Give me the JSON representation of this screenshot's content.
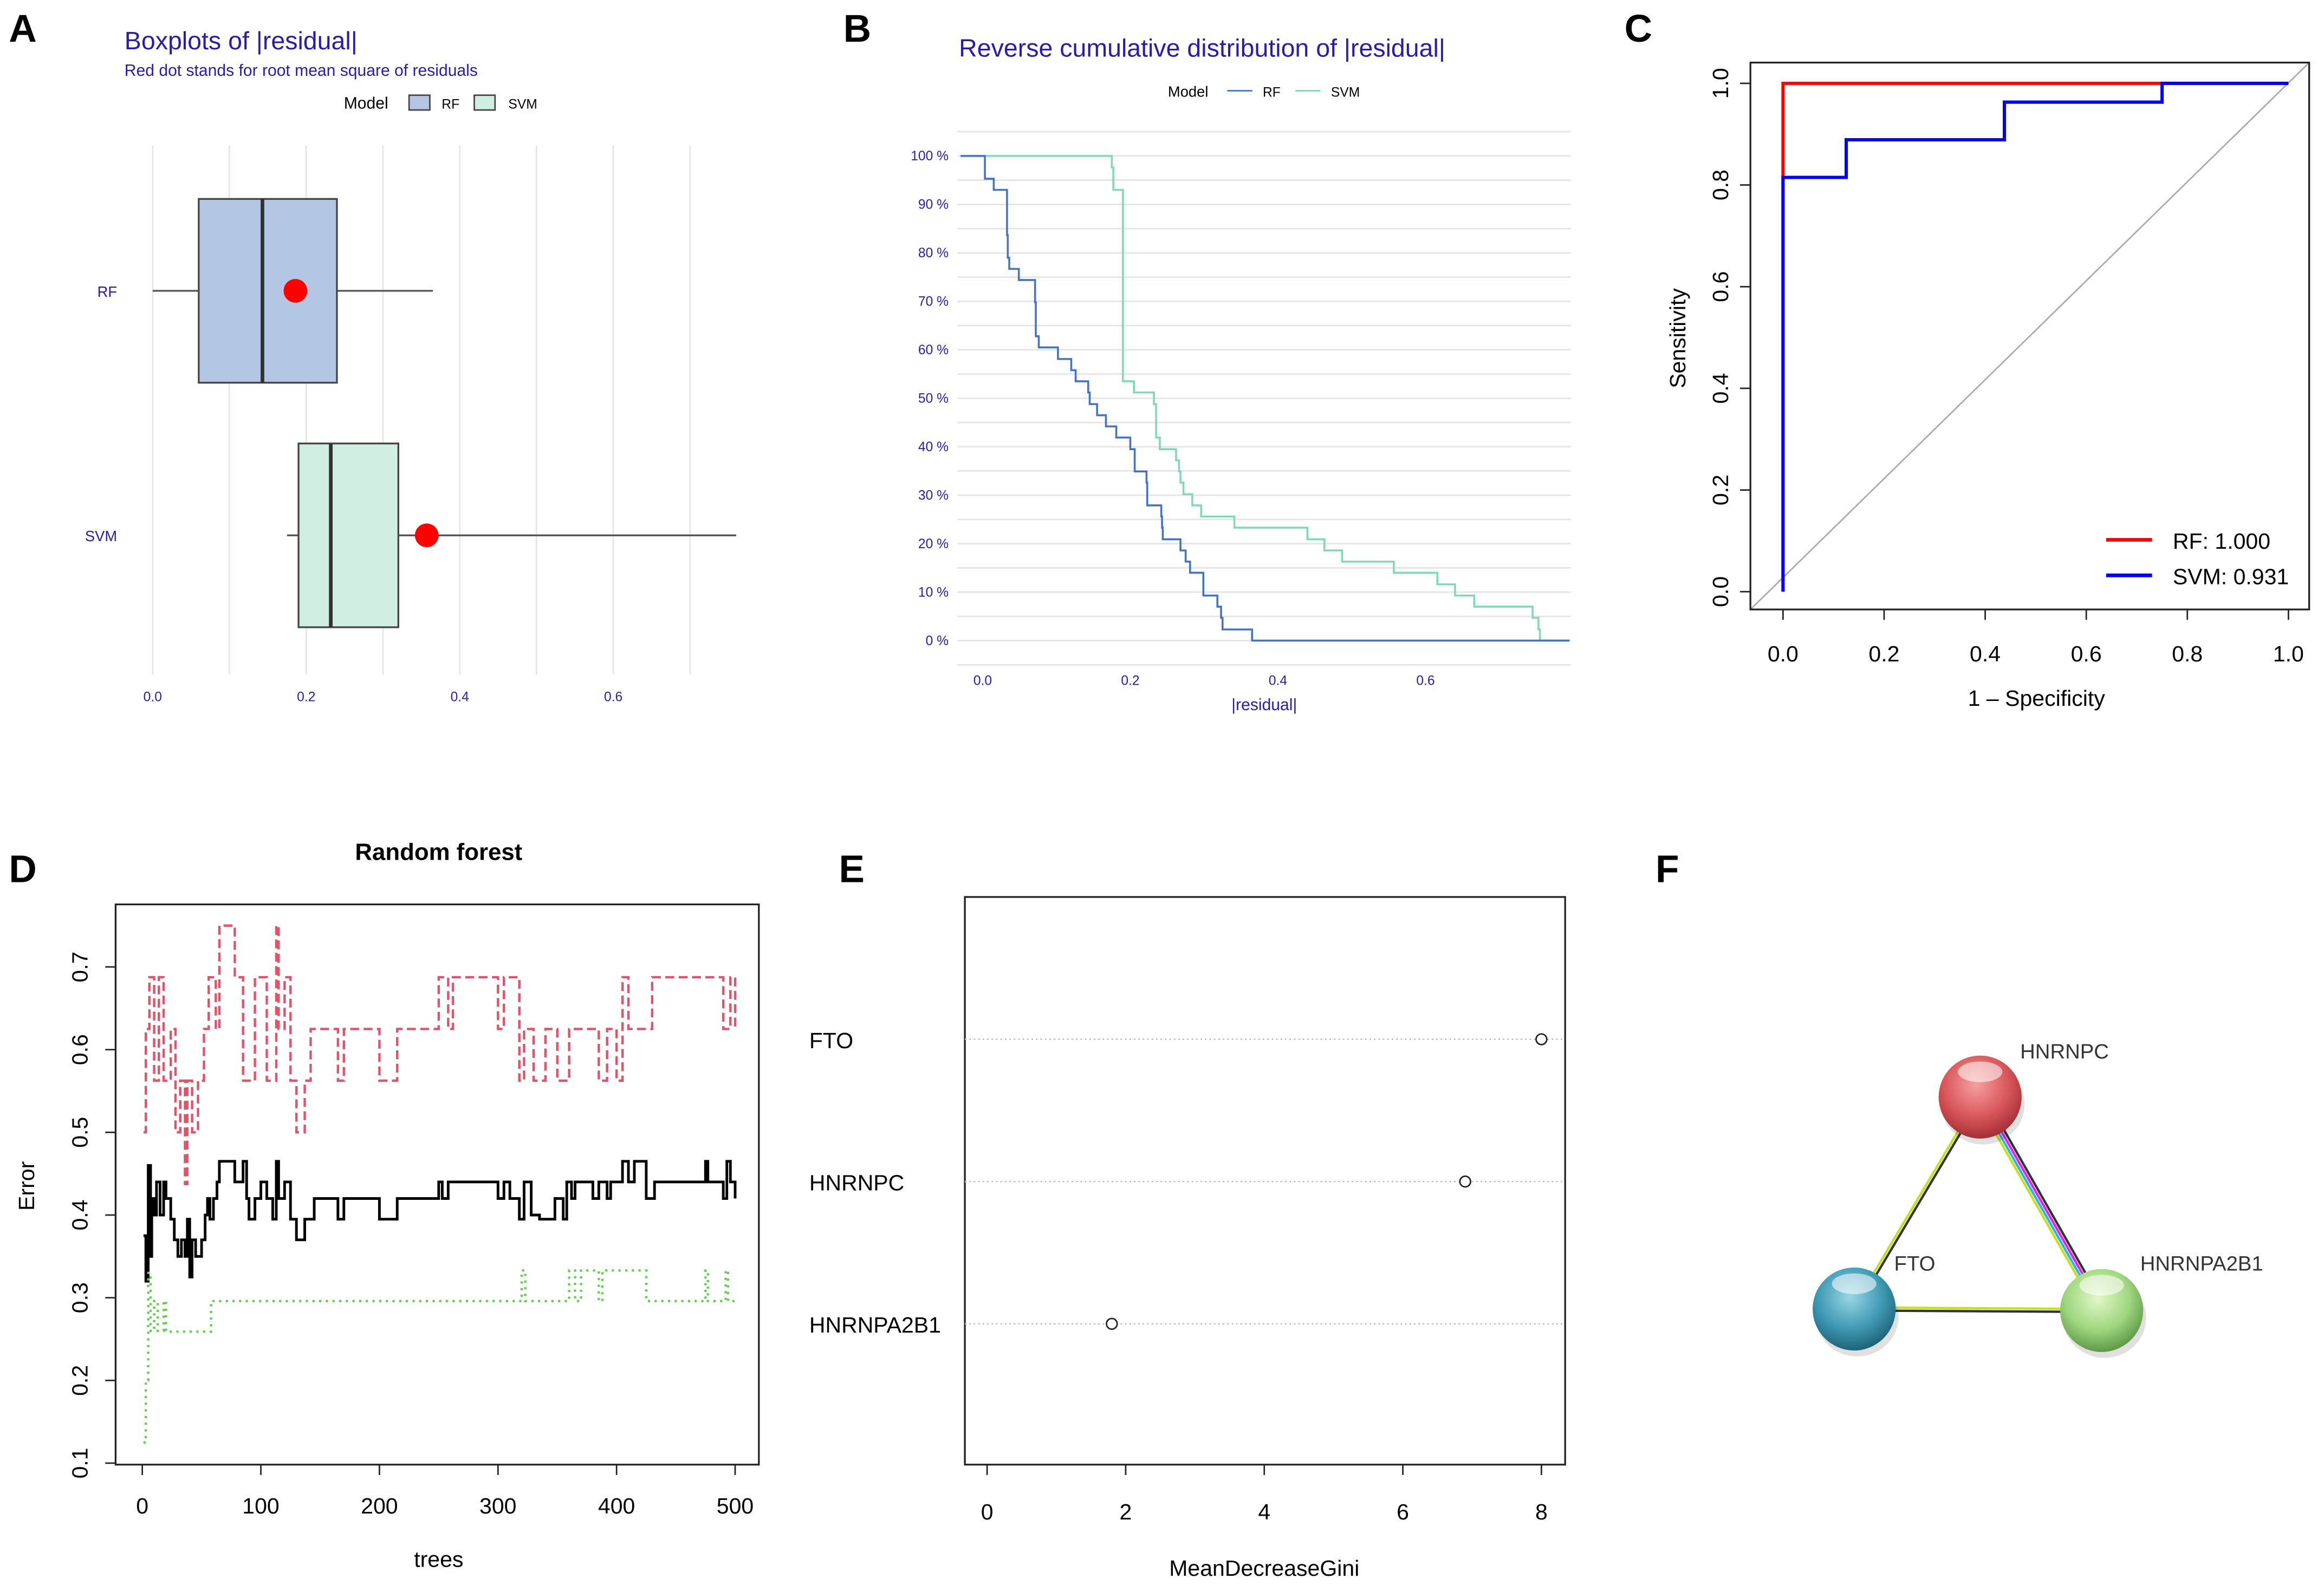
{
  "panel_labels": [
    "A",
    "B",
    "C",
    "D",
    "E",
    "F"
  ],
  "chart_data": [
    {
      "panel": "A",
      "type": "boxplot",
      "title": "Boxplots of |residual|",
      "subtitle": "Red dot stands for root mean square of residuals",
      "legend": {
        "title": "Model",
        "entries": [
          "RF",
          "SVM"
        ],
        "placement": "top"
      },
      "xlim": [
        0,
        0.75
      ],
      "xticks": [
        "0.0",
        "0.2",
        "0.4",
        "0.6"
      ],
      "grid": true,
      "categories": [
        "RF",
        "SVM"
      ],
      "series": [
        {
          "name": "RF",
          "min": 0.0,
          "q1": 0.06,
          "median": 0.143,
          "q3": 0.24,
          "max": 0.365,
          "rms": 0.186,
          "color": "#b3c7e5"
        },
        {
          "name": "SVM",
          "min": 0.175,
          "q1": 0.19,
          "median": 0.232,
          "q3": 0.32,
          "max": 0.76,
          "rms": 0.357,
          "color": "#d0eee2"
        }
      ],
      "rms_color": "#ff0000",
      "text_color": "#2a1ca8"
    },
    {
      "panel": "B",
      "type": "line",
      "title": "Reverse cumulative distribution of |residual|",
      "xlabel": "|residual|",
      "legend": {
        "title": "Model",
        "entries": [
          "RF",
          "SVM"
        ],
        "placement": "top"
      },
      "xlim": [
        -0.03,
        0.795
      ],
      "ylim": [
        -5,
        105
      ],
      "xticks": [
        "0.0",
        "0.2",
        "0.4",
        "0.6"
      ],
      "yticks": [
        "0 %",
        "10 %",
        "20 %",
        "30 %",
        "40 %",
        "50 %",
        "60 %",
        "70 %",
        "80 %",
        "90 %",
        "100 %"
      ],
      "grid": true,
      "series": [
        {
          "name": "RF",
          "color": "#4472c4",
          "steps": [
            [
              -0.03,
              100
            ],
            [
              0.003,
              95.3
            ],
            [
              0.015,
              93
            ],
            [
              0.033,
              83.7
            ],
            [
              0.034,
              79
            ],
            [
              0.036,
              76.7
            ],
            [
              0.049,
              74.4
            ],
            [
              0.071,
              69.8
            ],
            [
              0.072,
              62.8
            ],
            [
              0.076,
              60.5
            ],
            [
              0.102,
              58.1
            ],
            [
              0.12,
              55.8
            ],
            [
              0.126,
              53.5
            ],
            [
              0.143,
              51.2
            ],
            [
              0.145,
              48.8
            ],
            [
              0.155,
              46.5
            ],
            [
              0.167,
              44.2
            ],
            [
              0.181,
              41.9
            ],
            [
              0.2,
              39.5
            ],
            [
              0.206,
              34.9
            ],
            [
              0.222,
              32.6
            ],
            [
              0.223,
              27.9
            ],
            [
              0.242,
              25.6
            ],
            [
              0.243,
              23.3
            ],
            [
              0.244,
              20.9
            ],
            [
              0.268,
              18.6
            ],
            [
              0.275,
              16.3
            ],
            [
              0.281,
              14
            ],
            [
              0.299,
              9.3
            ],
            [
              0.318,
              7
            ],
            [
              0.323,
              4.7
            ],
            [
              0.325,
              2.3
            ],
            [
              0.365,
              0
            ],
            [
              0.795,
              0
            ]
          ]
        },
        {
          "name": "SVM",
          "color": "#7fd8b8",
          "steps": [
            [
              -0.03,
              100
            ],
            [
              0.175,
              97.6
            ],
            [
              0.177,
              93
            ],
            [
              0.19,
              53.5
            ],
            [
              0.205,
              51.2
            ],
            [
              0.232,
              48.8
            ],
            [
              0.235,
              41.9
            ],
            [
              0.24,
              39.5
            ],
            [
              0.262,
              37.2
            ],
            [
              0.266,
              34.9
            ],
            [
              0.268,
              32.6
            ],
            [
              0.272,
              30.2
            ],
            [
              0.284,
              27.9
            ],
            [
              0.296,
              25.6
            ],
            [
              0.341,
              23.3
            ],
            [
              0.44,
              20.9
            ],
            [
              0.463,
              18.6
            ],
            [
              0.487,
              16.3
            ],
            [
              0.557,
              14
            ],
            [
              0.616,
              11.6
            ],
            [
              0.64,
              9.3
            ],
            [
              0.666,
              7
            ],
            [
              0.745,
              4.7
            ],
            [
              0.753,
              2.3
            ],
            [
              0.755,
              0
            ],
            [
              0.795,
              0
            ]
          ]
        }
      ]
    },
    {
      "panel": "C",
      "type": "line",
      "xlabel": "1 – Specificity",
      "ylabel": "Sensitivity",
      "xlim": [
        0,
        1
      ],
      "ylim": [
        0,
        1
      ],
      "xticks": [
        "0.0",
        "0.2",
        "0.4",
        "0.6",
        "0.8",
        "1.0"
      ],
      "yticks": [
        "0.0",
        "0.2",
        "0.4",
        "0.6",
        "0.8",
        "1.0"
      ],
      "legend": {
        "placement": "bottom-right"
      },
      "series": [
        {
          "name": "RF: 1.000",
          "color": "#ff0000",
          "points": [
            [
              0,
              0
            ],
            [
              0,
              1
            ],
            [
              1,
              1
            ]
          ]
        },
        {
          "name": "SVM: 0.931",
          "color": "#0000ff",
          "points": [
            [
              0,
              0
            ],
            [
              0,
              0.815
            ],
            [
              0.125,
              0.815
            ],
            [
              0.125,
              0.889
            ],
            [
              0.438,
              0.889
            ],
            [
              0.438,
              0.963
            ],
            [
              0.75,
              0.963
            ],
            [
              0.75,
              1
            ],
            [
              1,
              1
            ]
          ]
        }
      ],
      "reference_line_color": "#aaaaaa"
    },
    {
      "panel": "D",
      "type": "line",
      "title": "Random forest",
      "xlabel": "trees",
      "ylabel": "Error",
      "xlim": [
        0,
        500
      ],
      "ylim": [
        0.1,
        0.75
      ],
      "xticks": [
        "0",
        "100",
        "200",
        "300",
        "400",
        "500"
      ],
      "yticks": [
        "0.1",
        "0.2",
        "0.3",
        "0.4",
        "0.5",
        "0.6",
        "0.7"
      ],
      "series": [
        {
          "style": "solid",
          "color": "#000000",
          "steps": [
            [
              1,
              0.375
            ],
            [
              3,
              0.32
            ],
            [
              5,
              0.46
            ],
            [
              7,
              0.35
            ],
            [
              8,
              0.42
            ],
            [
              10,
              0.4
            ],
            [
              12,
              0.44
            ],
            [
              15,
              0.4
            ],
            [
              18,
              0.44
            ],
            [
              20,
              0.42
            ],
            [
              24,
              0.395
            ],
            [
              27,
              0.37
            ],
            [
              30,
              0.35
            ],
            [
              33,
              0.37
            ],
            [
              36,
              0.35
            ],
            [
              38,
              0.395
            ],
            [
              40,
              0.325
            ],
            [
              42,
              0.37
            ],
            [
              45,
              0.35
            ],
            [
              50,
              0.37
            ],
            [
              53,
              0.4
            ],
            [
              55,
              0.42
            ],
            [
              57,
              0.395
            ],
            [
              60,
              0.42
            ],
            [
              63,
              0.44
            ],
            [
              65,
              0.465
            ],
            [
              78,
              0.44
            ],
            [
              85,
              0.465
            ],
            [
              88,
              0.42
            ],
            [
              90,
              0.395
            ],
            [
              95,
              0.42
            ],
            [
              100,
              0.44
            ],
            [
              105,
              0.42
            ],
            [
              110,
              0.395
            ],
            [
              113,
              0.465
            ],
            [
              115,
              0.42
            ],
            [
              120,
              0.44
            ],
            [
              125,
              0.395
            ],
            [
              130,
              0.37
            ],
            [
              137,
              0.395
            ],
            [
              145,
              0.42
            ],
            [
              165,
              0.395
            ],
            [
              170,
              0.42
            ],
            [
              200,
              0.395
            ],
            [
              215,
              0.42
            ],
            [
              250,
              0.44
            ],
            [
              253,
              0.42
            ],
            [
              258,
              0.44
            ],
            [
              300,
              0.42
            ],
            [
              305,
              0.44
            ],
            [
              310,
              0.42
            ],
            [
              318,
              0.395
            ],
            [
              322,
              0.44
            ],
            [
              328,
              0.4
            ],
            [
              335,
              0.395
            ],
            [
              348,
              0.42
            ],
            [
              355,
              0.395
            ],
            [
              358,
              0.44
            ],
            [
              362,
              0.42
            ],
            [
              365,
              0.44
            ],
            [
              380,
              0.42
            ],
            [
              385,
              0.44
            ],
            [
              392,
              0.42
            ],
            [
              395,
              0.44
            ],
            [
              405,
              0.465
            ],
            [
              410,
              0.44
            ],
            [
              415,
              0.465
            ],
            [
              425,
              0.42
            ],
            [
              432,
              0.44
            ],
            [
              475,
              0.465
            ],
            [
              477,
              0.44
            ],
            [
              490,
              0.42
            ],
            [
              493,
              0.465
            ],
            [
              496,
              0.44
            ],
            [
              500,
              0.42
            ]
          ]
        },
        {
          "style": "dashed",
          "color": "#df536b",
          "steps": [
            [
              1,
              0.5
            ],
            [
              3,
              0.625
            ],
            [
              6,
              0.6875
            ],
            [
              10,
              0.5625
            ],
            [
              14,
              0.6875
            ],
            [
              18,
              0.5625
            ],
            [
              24,
              0.625
            ],
            [
              28,
              0.5
            ],
            [
              32,
              0.5625
            ],
            [
              36,
              0.4375
            ],
            [
              38,
              0.5625
            ],
            [
              42,
              0.5
            ],
            [
              47,
              0.5625
            ],
            [
              52,
              0.625
            ],
            [
              56,
              0.6875
            ],
            [
              62,
              0.625
            ],
            [
              65,
              0.75
            ],
            [
              78,
              0.6875
            ],
            [
              85,
              0.5625
            ],
            [
              95,
              0.6875
            ],
            [
              105,
              0.5625
            ],
            [
              113,
              0.75
            ],
            [
              115,
              0.625
            ],
            [
              120,
              0.6875
            ],
            [
              125,
              0.5625
            ],
            [
              130,
              0.5
            ],
            [
              137,
              0.5625
            ],
            [
              142,
              0.625
            ],
            [
              165,
              0.5625
            ],
            [
              170,
              0.625
            ],
            [
              200,
              0.5625
            ],
            [
              215,
              0.625
            ],
            [
              250,
              0.6875
            ],
            [
              258,
              0.625
            ],
            [
              262,
              0.6875
            ],
            [
              300,
              0.625
            ],
            [
              305,
              0.6875
            ],
            [
              318,
              0.5625
            ],
            [
              322,
              0.625
            ],
            [
              330,
              0.5625
            ],
            [
              340,
              0.625
            ],
            [
              350,
              0.5625
            ],
            [
              360,
              0.625
            ],
            [
              385,
              0.5625
            ],
            [
              392,
              0.625
            ],
            [
              400,
              0.5625
            ],
            [
              405,
              0.6875
            ],
            [
              410,
              0.625
            ],
            [
              430,
              0.6875
            ],
            [
              490,
              0.625
            ],
            [
              496,
              0.6875
            ],
            [
              500,
              0.625
            ]
          ]
        },
        {
          "style": "dotted",
          "color": "#61d04f",
          "steps": [
            [
              1,
              0.125
            ],
            [
              3,
              0.2
            ],
            [
              5,
              0.33
            ],
            [
              7,
              0.26
            ],
            [
              10,
              0.296
            ],
            [
              13,
              0.26
            ],
            [
              18,
              0.296
            ],
            [
              20,
              0.259
            ],
            [
              58,
              0.296
            ],
            [
              320,
              0.333
            ],
            [
              323,
              0.296
            ],
            [
              360,
              0.333
            ],
            [
              365,
              0.296
            ],
            [
              370,
              0.333
            ],
            [
              385,
              0.296
            ],
            [
              388,
              0.333
            ],
            [
              425,
              0.296
            ],
            [
              475,
              0.333
            ],
            [
              477,
              0.296
            ],
            [
              492,
              0.333
            ],
            [
              494,
              0.296
            ],
            [
              500,
              0.296
            ]
          ]
        }
      ]
    },
    {
      "panel": "E",
      "type": "scatter",
      "xlabel": "MeanDecreaseGini",
      "xlim": [
        0,
        8
      ],
      "xticks": [
        "0",
        "2",
        "4",
        "6",
        "8"
      ],
      "categories": [
        "FTO",
        "HNRNPC",
        "HNRNPA2B1"
      ],
      "values": [
        8.0,
        6.9,
        1.8
      ]
    }
  ],
  "network": {
    "panel": "F",
    "nodes": [
      {
        "label": "HNRNPC",
        "color": "#d9575b"
      },
      {
        "label": "FTO",
        "color": "#3f9ab4"
      },
      {
        "label": "HNRNPA2B1",
        "color": "#9fd67f"
      }
    ],
    "edges": [
      {
        "from": "HNRNPC",
        "to": "FTO",
        "colors": [
          "#333333",
          "#c5e01a"
        ]
      },
      {
        "from": "HNRNPC",
        "to": "HNRNPA2B1",
        "colors": [
          "#333333",
          "#e91ee9",
          "#22b8e8",
          "#c5e01a"
        ]
      },
      {
        "from": "FTO",
        "to": "HNRNPA2B1",
        "colors": [
          "#c5e01a",
          "#333333"
        ]
      }
    ]
  }
}
